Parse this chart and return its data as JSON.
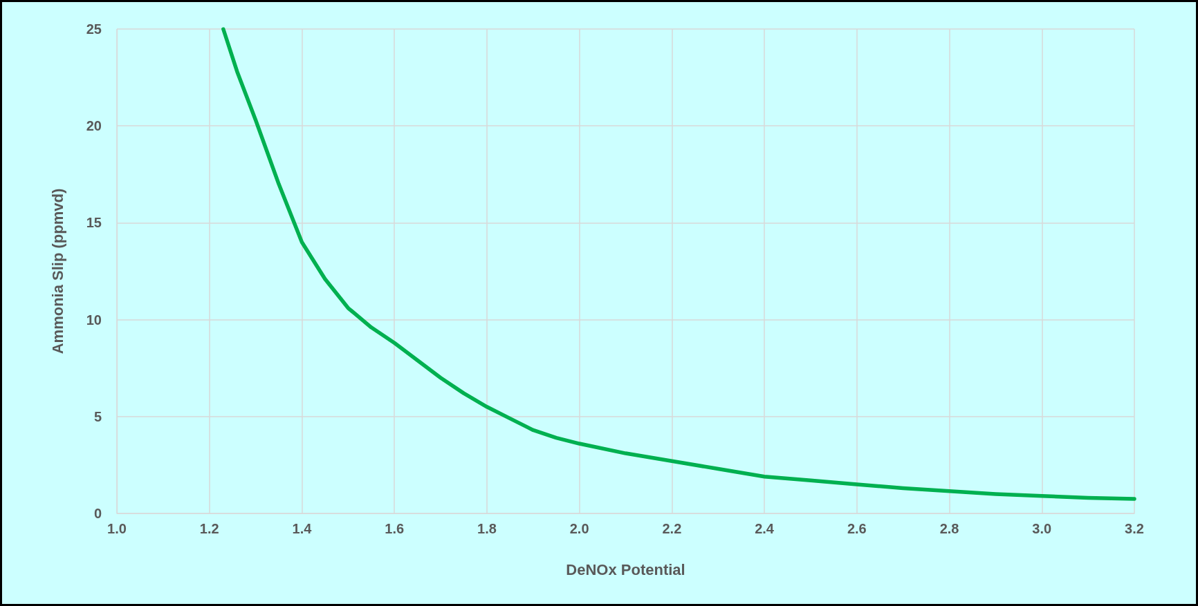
{
  "chart_data": {
    "type": "line",
    "xlabel": "DeNOx Potential",
    "ylabel": "Ammonia Slip (ppmvd)",
    "x": [
      1.23,
      1.26,
      1.3,
      1.35,
      1.4,
      1.45,
      1.5,
      1.55,
      1.6,
      1.65,
      1.7,
      1.75,
      1.8,
      1.85,
      1.9,
      1.95,
      2.0,
      2.1,
      2.2,
      2.3,
      2.4,
      2.5,
      2.6,
      2.7,
      2.8,
      2.9,
      3.0,
      3.1,
      3.2
    ],
    "series": [
      {
        "color": "#00b050",
        "values": [
          25,
          22.8,
          20.3,
          17,
          14,
          12.1,
          10.6,
          9.6,
          8.8,
          7.9,
          7.0,
          6.2,
          5.5,
          4.9,
          4.3,
          3.9,
          3.6,
          3.1,
          2.7,
          2.3,
          1.9,
          1.7,
          1.5,
          1.3,
          1.15,
          1.0,
          0.9,
          0.8,
          0.75
        ]
      }
    ],
    "xlim": [
      1.0,
      3.2
    ],
    "xticks": [
      {
        "value": 1.0,
        "label": "1.0"
      },
      {
        "value": 1.2,
        "label": "1.2"
      },
      {
        "value": 1.4,
        "label": "1.4"
      },
      {
        "value": 1.6,
        "label": "1.6"
      },
      {
        "value": 1.8,
        "label": "1.8"
      },
      {
        "value": 2.0,
        "label": "2.0"
      },
      {
        "value": 2.2,
        "label": "2.2"
      },
      {
        "value": 2.4,
        "label": "2.4"
      },
      {
        "value": 2.6,
        "label": "2.6"
      },
      {
        "value": 2.8,
        "label": "2.8"
      },
      {
        "value": 3.0,
        "label": "3.0"
      },
      {
        "value": 3.2,
        "label": "3.2"
      }
    ],
    "ylim": [
      0,
      25
    ],
    "yticks": [
      0,
      5,
      10,
      15,
      20,
      25
    ],
    "grid": true,
    "marker": "none",
    "line_style": "solid"
  }
}
